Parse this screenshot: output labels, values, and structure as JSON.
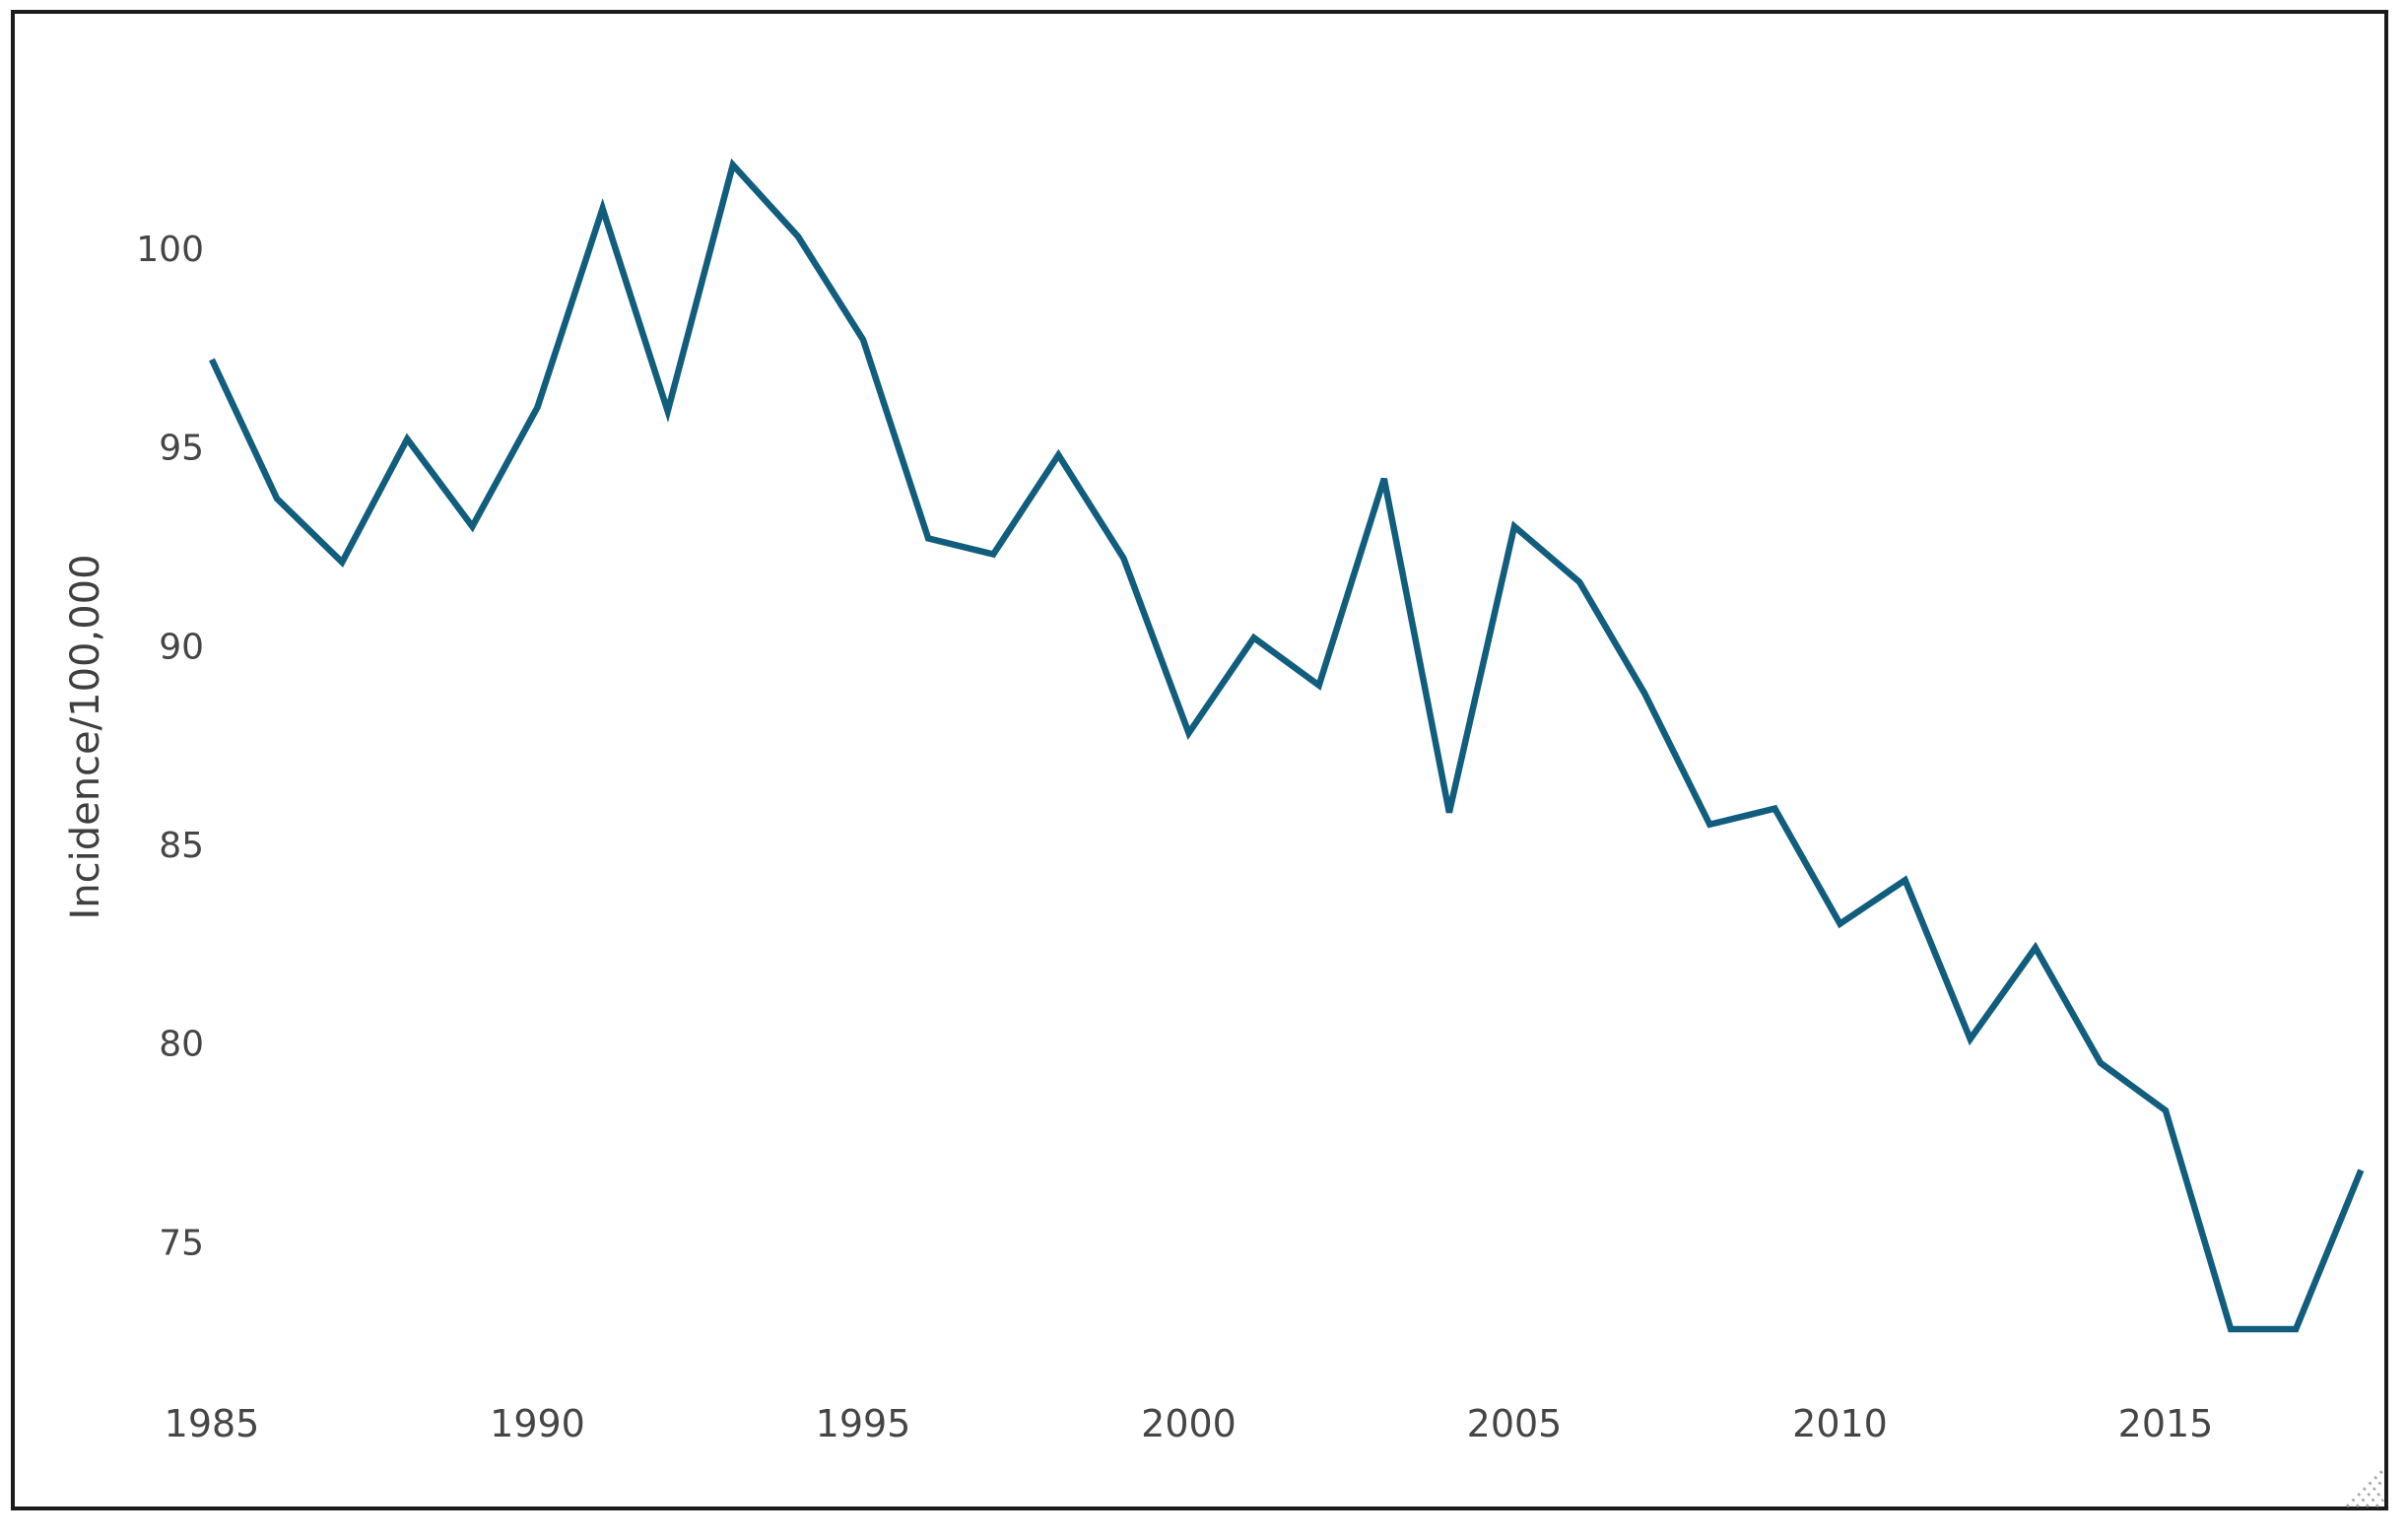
{
  "chart_data": {
    "type": "line",
    "title": "",
    "xlabel": "",
    "ylabel": "Incidence/100,000",
    "x": [
      1985,
      1986,
      1987,
      1988,
      1989,
      1990,
      1991,
      1992,
      1993,
      1994,
      1995,
      1996,
      1997,
      1998,
      1999,
      2000,
      2001,
      2002,
      2003,
      2004,
      2005,
      2006,
      2007,
      2008,
      2009,
      2010,
      2011,
      2012,
      2013,
      2014,
      2015,
      2016,
      2017,
      2018
    ],
    "values": [
      97.2,
      93.7,
      92.1,
      95.2,
      93.0,
      96.0,
      101.0,
      95.9,
      102.1,
      100.3,
      97.7,
      92.7,
      92.3,
      94.8,
      92.2,
      87.8,
      90.2,
      89.0,
      94.2,
      85.8,
      93.0,
      91.6,
      88.8,
      85.5,
      85.9,
      83.0,
      84.1,
      80.1,
      82.4,
      79.5,
      78.3,
      72.8,
      72.8,
      76.8
    ],
    "yticks": [
      100,
      95,
      90,
      85,
      80,
      75
    ],
    "xticks": [
      1985,
      1990,
      1995,
      2000,
      2005,
      2010,
      2015
    ],
    "xlim": [
      1985,
      2018
    ],
    "ylim": [
      71,
      104
    ],
    "grid": "off",
    "legend": "none",
    "line_color": "#115d7d",
    "tick_label_color": "#454545",
    "axis_title_color": "#3f3f3f",
    "frame_color": "#1c1c1c",
    "background_color": "#ffffff",
    "resize_grip_color": "#a8a8a8"
  }
}
